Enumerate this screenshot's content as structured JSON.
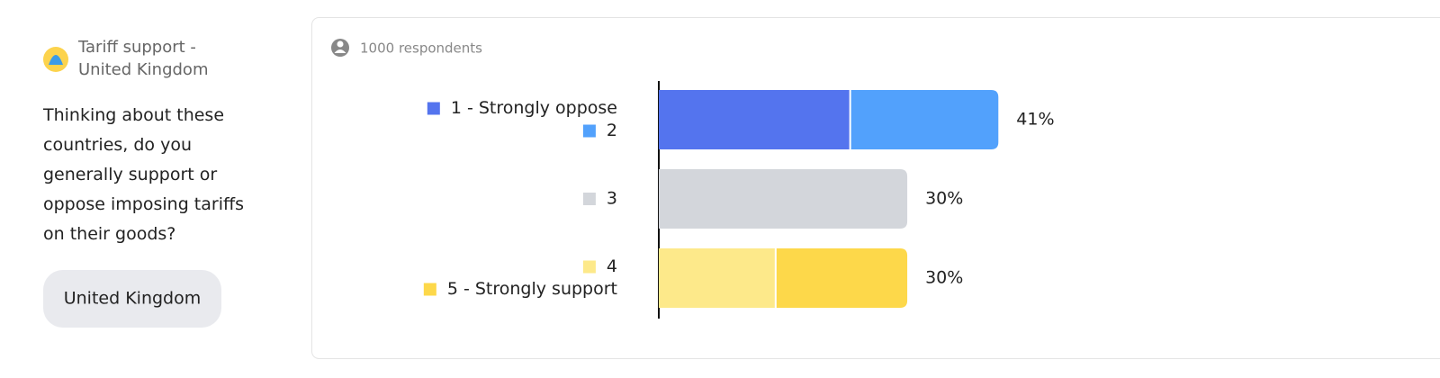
{
  "sidebar": {
    "title_lines": [
      "Tariff support -",
      "United Kingdom"
    ],
    "question": "Thinking about these countries, do you generally support or oppose imposing tariffs on their goods?",
    "button": "United Kingdom"
  },
  "respondents": "1000 respondents",
  "chart_data": {
    "type": "stacked-bar-horizontal",
    "categories": [
      null,
      null,
      null
    ],
    "series": [
      {
        "name": "1 - Strongly oppose",
        "color": "#5474ee",
        "values": [
          23,
          null,
          null
        ]
      },
      {
        "name": "2",
        "color": "#52a1fc",
        "values": [
          18,
          null,
          null
        ]
      },
      {
        "name": "3",
        "color": "#d3d6db",
        "values": [
          null,
          30,
          null
        ]
      },
      {
        "name": "4",
        "color": "#fde98a",
        "values": [
          null,
          null,
          14
        ]
      },
      {
        "name": "5 - Strongly support",
        "color": "#fdd84a",
        "values": [
          null,
          null,
          16
        ]
      }
    ],
    "totals": {
      "values": [
        41,
        30,
        30
      ],
      "value_labels": [
        "41%",
        "30%",
        "30%"
      ]
    },
    "xlim": [
      0,
      94
    ]
  }
}
